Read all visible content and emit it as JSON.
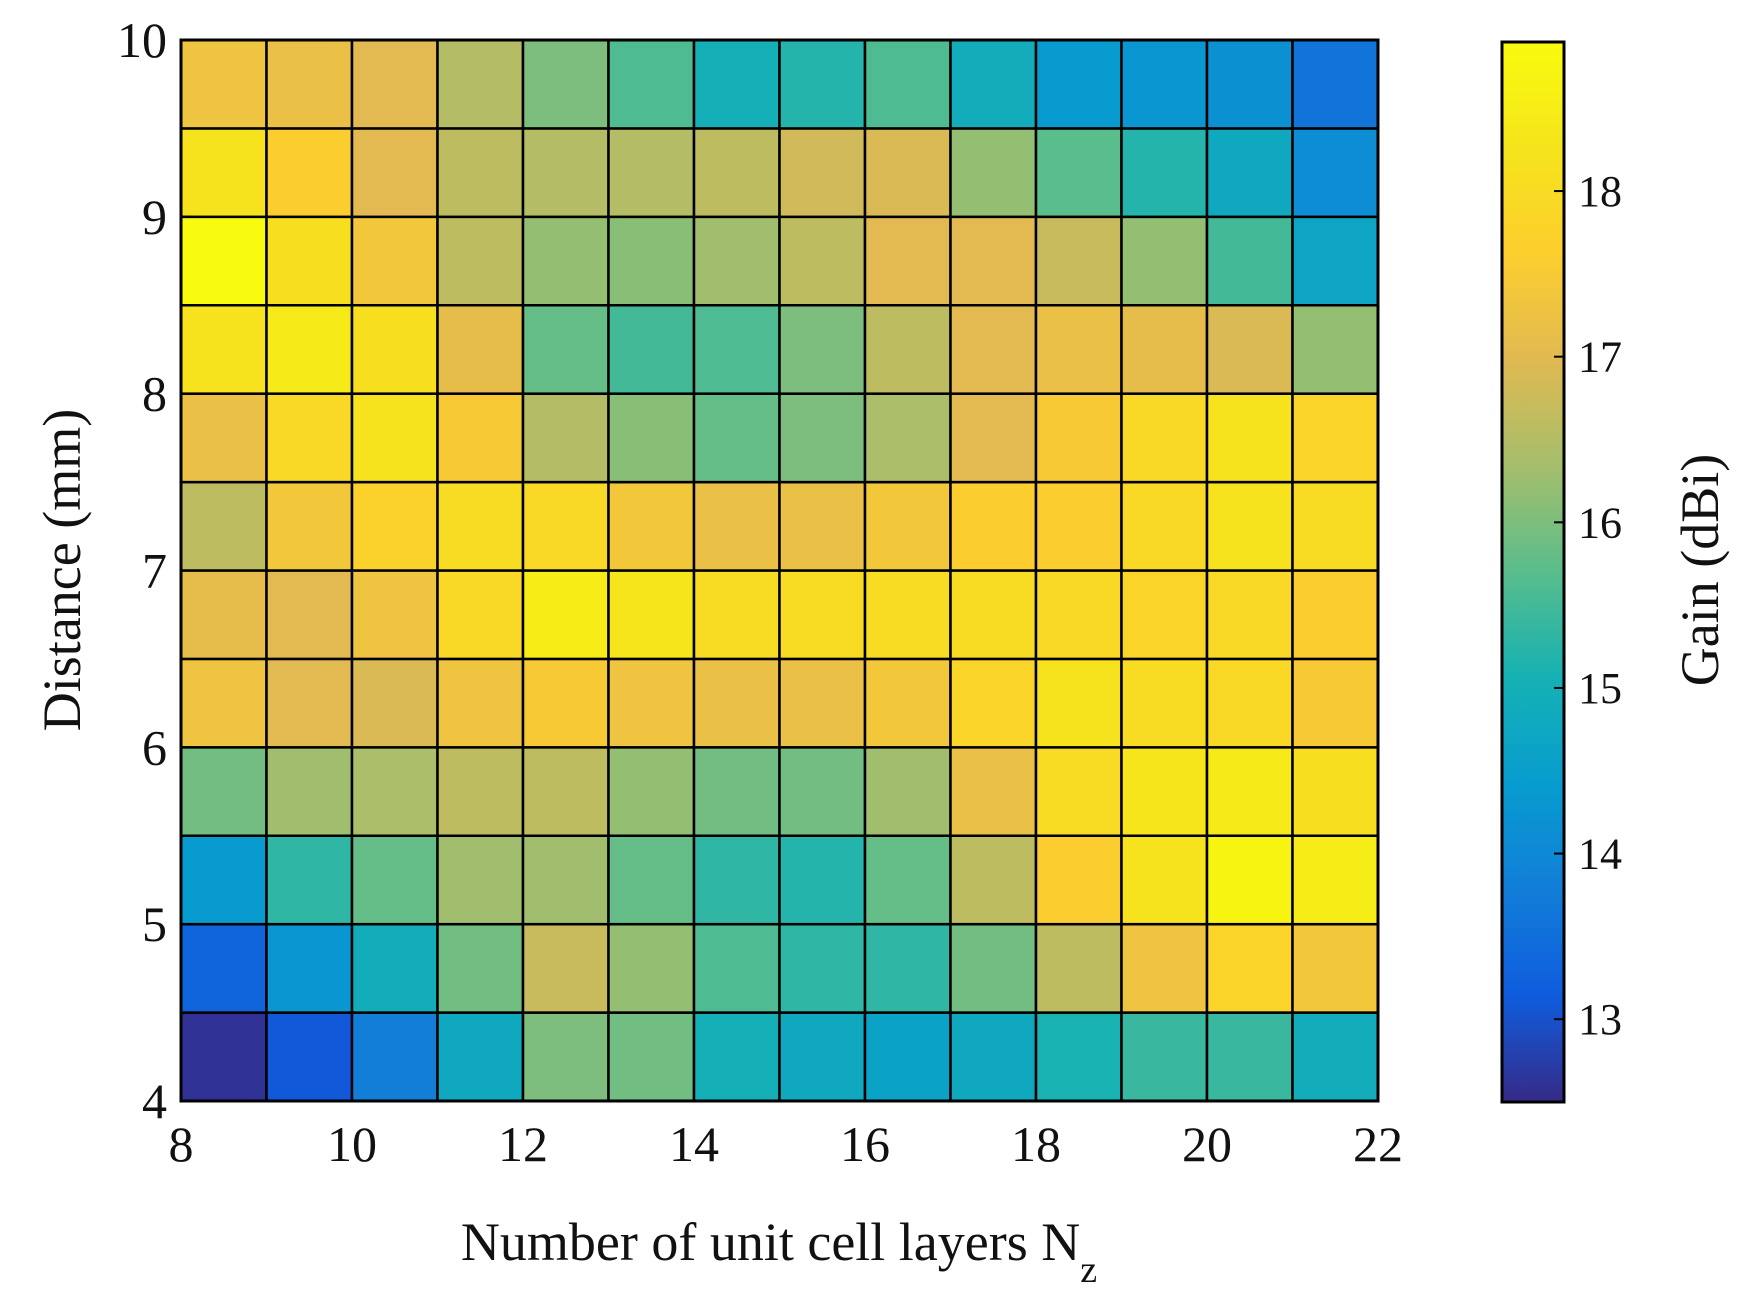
{
  "chart_data": {
    "type": "heatmap",
    "title": "",
    "xlabel": "Number of unit cell layers N",
    "xlabel_subscript": "z",
    "ylabel": "Distance (mm)",
    "colorbar_label": "Gain (dBi)",
    "xlim": [
      8,
      22
    ],
    "ylim": [
      4,
      10
    ],
    "x_ticks": [
      "8",
      "10",
      "12",
      "14",
      "16",
      "18",
      "20",
      "22"
    ],
    "y_ticks": [
      "4",
      "5",
      "6",
      "7",
      "8",
      "9",
      "10"
    ],
    "colorbar_ticks": [
      "13",
      "14",
      "15",
      "16",
      "17",
      "18"
    ],
    "colorbar_range": [
      12.5,
      18.9
    ],
    "colormap": "parula",
    "x_edges": [
      8,
      9,
      10,
      11,
      12,
      13,
      14,
      15,
      16,
      17,
      18,
      19,
      20,
      21,
      22
    ],
    "y_edges": [
      4,
      4.5,
      5,
      5.5,
      6,
      6.5,
      7,
      7.5,
      8,
      8.5,
      9,
      9.5,
      10
    ],
    "values": [
      [
        12.6,
        13.1,
        13.8,
        14.8,
        16.0,
        15.9,
        15.0,
        14.8,
        14.6,
        14.8,
        15.1,
        15.4,
        15.4,
        14.9
      ],
      [
        13.3,
        14.3,
        14.9,
        15.9,
        16.7,
        16.2,
        15.6,
        15.3,
        15.3,
        15.9,
        16.6,
        17.3,
        17.8,
        17.4
      ],
      [
        14.4,
        15.3,
        15.8,
        16.3,
        16.3,
        15.8,
        15.3,
        15.2,
        15.8,
        16.6,
        17.6,
        18.2,
        18.7,
        18.5
      ],
      [
        15.9,
        16.3,
        16.4,
        16.6,
        16.6,
        16.2,
        15.9,
        15.9,
        16.3,
        17.2,
        18.0,
        18.3,
        18.4,
        18.1
      ],
      [
        17.3,
        17.0,
        16.9,
        17.3,
        17.5,
        17.3,
        17.2,
        17.2,
        17.4,
        17.8,
        18.2,
        18.0,
        17.9,
        17.5
      ],
      [
        17.1,
        17.0,
        17.3,
        17.9,
        18.5,
        18.3,
        18.0,
        18.0,
        18.0,
        18.0,
        17.9,
        17.8,
        17.9,
        17.6
      ],
      [
        16.6,
        17.4,
        17.7,
        18.0,
        17.9,
        17.4,
        17.2,
        17.2,
        17.4,
        17.6,
        17.6,
        17.9,
        18.2,
        18.0
      ],
      [
        17.2,
        17.9,
        18.2,
        17.5,
        16.5,
        16.1,
        15.8,
        16.0,
        16.4,
        17.0,
        17.5,
        17.9,
        18.2,
        17.8
      ],
      [
        18.2,
        18.4,
        18.1,
        17.1,
        15.8,
        15.5,
        15.6,
        16.0,
        16.6,
        17.0,
        17.2,
        17.1,
        16.9,
        16.2
      ],
      [
        18.9,
        18.1,
        17.4,
        16.6,
        16.2,
        16.1,
        16.3,
        16.6,
        17.0,
        17.0,
        16.7,
        16.2,
        15.5,
        14.7
      ],
      [
        18.2,
        17.6,
        17.0,
        16.6,
        16.5,
        16.5,
        16.6,
        16.8,
        16.9,
        16.2,
        15.7,
        15.2,
        14.8,
        14.1
      ],
      [
        17.3,
        17.2,
        17.0,
        16.5,
        16.0,
        15.6,
        15.0,
        15.2,
        15.6,
        14.9,
        14.4,
        14.3,
        14.2,
        13.6
      ]
    ]
  }
}
